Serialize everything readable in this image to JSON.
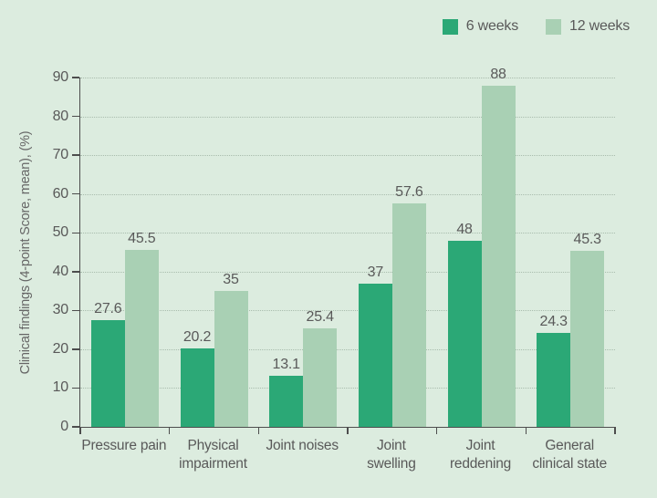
{
  "chart_data": {
    "type": "bar",
    "title": "",
    "ylabel": "Clinical findings (4-point Score, mean), (%)",
    "xlabel": "",
    "ylim": [
      0,
      90
    ],
    "yticks": [
      0,
      10,
      20,
      30,
      40,
      50,
      60,
      70,
      80,
      90
    ],
    "grid": "horizontal-dotted",
    "legend_position": "top-right",
    "background_color": "#dcecdf",
    "categories": [
      "Pressure pain",
      "Physical impairment",
      "Joint noises",
      "Joint swelling",
      "Joint reddening",
      "General clinical state"
    ],
    "category_lines": [
      [
        "Pressure pain"
      ],
      [
        "Physical",
        "impairment"
      ],
      [
        "Joint noises"
      ],
      [
        "Joint",
        "swelling"
      ],
      [
        "Joint",
        "reddening"
      ],
      [
        "General",
        "clinical state"
      ]
    ],
    "series": [
      {
        "name": "6 weeks",
        "color": "#2ba876",
        "values": [
          27.6,
          20.2,
          13.1,
          37,
          48,
          24.3
        ]
      },
      {
        "name": "12 weeks",
        "color": "#a9d0b4",
        "values": [
          45.5,
          35,
          25.4,
          57.6,
          88,
          45.3
        ]
      }
    ],
    "data_labels_shown": [
      "27.6",
      "45.5",
      "20.2",
      "35",
      "13.1",
      "25.4",
      "37",
      "57.6",
      "48",
      "88",
      "24.3",
      "45.3"
    ]
  }
}
